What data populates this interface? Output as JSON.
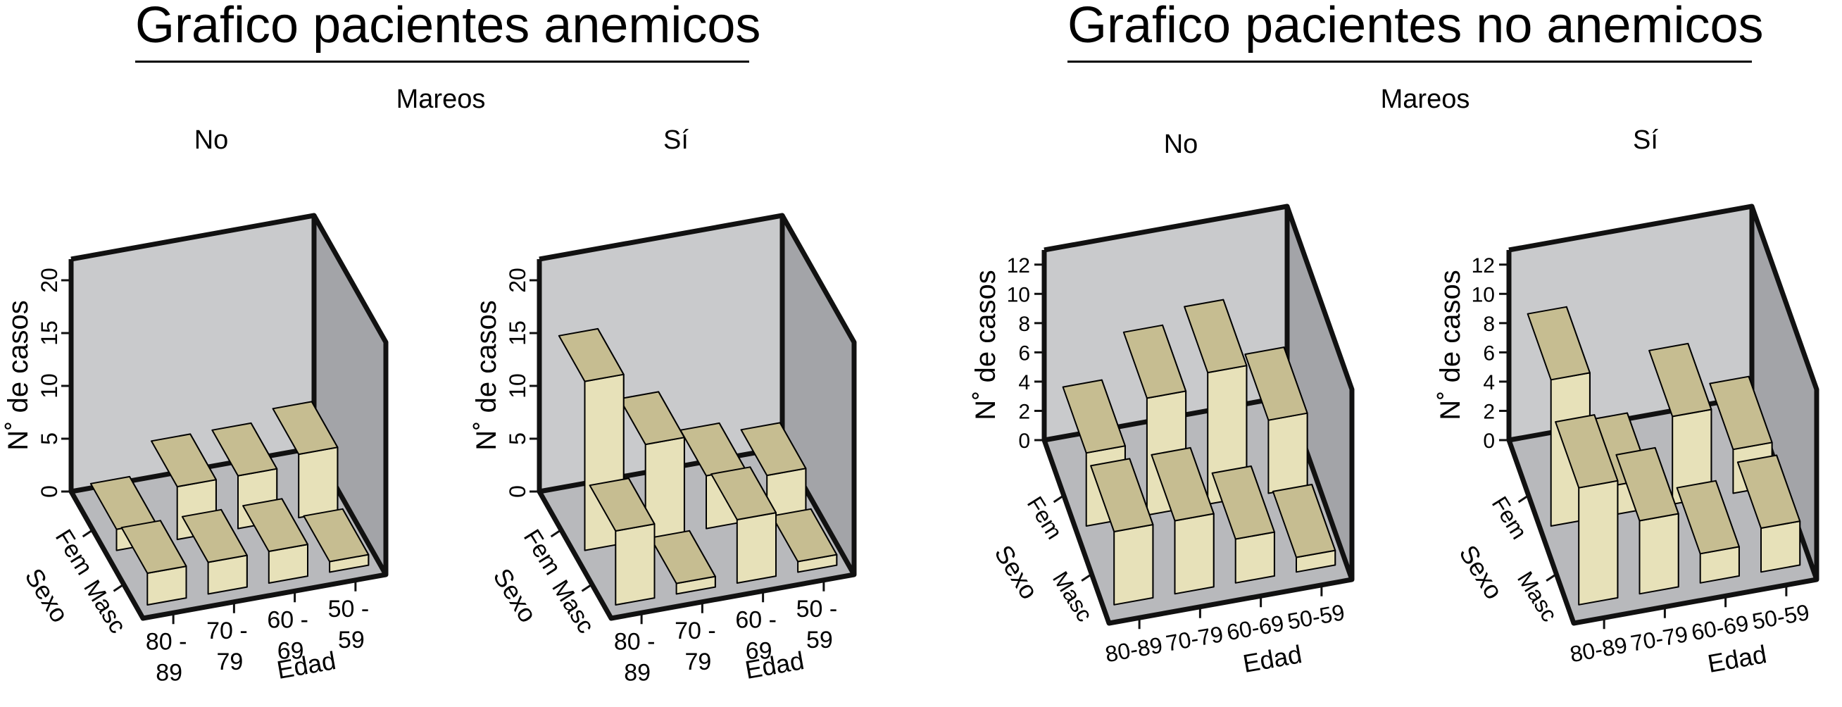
{
  "groups": [
    {
      "title": "Grafico pacientes anemicos",
      "facet_label": "Mareos",
      "ylabel": "N˚ de casos",
      "sexo_label": "Sexo",
      "edad_label": "Edad",
      "sexo_levels": [
        "Fem",
        "Masc"
      ],
      "edad_levels": [
        "80 -\n89",
        "70 -\n79",
        "60 -\n69",
        "50 -\n59"
      ]
    },
    {
      "title": "Grafico pacientes no anemicos",
      "facet_label": "Mareos",
      "ylabel": "N˚ de casos",
      "sexo_label": "Sexo",
      "edad_label": "Edad",
      "sexo_levels": [
        "Fem",
        "Masc"
      ],
      "edad_levels": [
        "80-89",
        "70-79",
        "60-69",
        "50-59"
      ]
    }
  ],
  "chart_data": [
    {
      "type": "bar3d",
      "group": "Grafico pacientes anemicos",
      "panel": "No",
      "xlabel": "Edad",
      "ylabel": "N˚ de casos",
      "zlabel": "Sexo",
      "categories": [
        "80 - 89",
        "70 - 79",
        "60 - 69",
        "50 - 59"
      ],
      "ylim": [
        0,
        22
      ],
      "yticks": [
        0,
        5,
        10,
        15,
        20
      ],
      "series": [
        {
          "name": "Fem",
          "values": [
            2,
            5,
            5,
            6
          ]
        },
        {
          "name": "Masc",
          "values": [
            3,
            3,
            3,
            1
          ]
        }
      ]
    },
    {
      "type": "bar3d",
      "group": "Grafico pacientes anemicos",
      "panel": "Sí",
      "xlabel": "Edad",
      "ylabel": "N˚ de casos",
      "zlabel": "Sexo",
      "categories": [
        "80 - 89",
        "70 - 79",
        "60 - 69",
        "50 - 59"
      ],
      "ylim": [
        0,
        22
      ],
      "yticks": [
        0,
        5,
        10,
        15,
        20
      ],
      "series": [
        {
          "name": "Fem",
          "values": [
            16,
            9,
            5,
            4
          ]
        },
        {
          "name": "Masc",
          "values": [
            7,
            1,
            6,
            1
          ]
        }
      ]
    },
    {
      "type": "bar3d",
      "group": "Grafico pacientes no anemicos",
      "panel": "No",
      "xlabel": "Edad",
      "ylabel": "N˚ de casos",
      "zlabel": "Sexo",
      "categories": [
        "80-89",
        "70-79",
        "60-69",
        "50-59"
      ],
      "ylim": [
        0,
        13
      ],
      "yticks": [
        0,
        2,
        4,
        6,
        8,
        10,
        12
      ],
      "series": [
        {
          "name": "Fem",
          "values": [
            5,
            8,
            9,
            5
          ]
        },
        {
          "name": "Masc",
          "values": [
            5,
            5,
            3,
            1
          ]
        }
      ]
    },
    {
      "type": "bar3d",
      "group": "Grafico pacientes no anemicos",
      "panel": "Sí",
      "xlabel": "Edad",
      "ylabel": "N˚ de casos",
      "zlabel": "Sexo",
      "categories": [
        "80-89",
        "70-79",
        "60-69",
        "50-59"
      ],
      "ylim": [
        0,
        13
      ],
      "yticks": [
        0,
        2,
        4,
        6,
        8,
        10,
        12
      ],
      "series": [
        {
          "name": "Fem",
          "values": [
            10,
            2,
            6,
            3
          ]
        },
        {
          "name": "Masc",
          "values": [
            8,
            5,
            2,
            3
          ]
        }
      ]
    }
  ],
  "colors": {
    "bar_front": "#e7e1b9",
    "bar_top": "#c6bd91",
    "bar_side": "#aba27a",
    "back_wall": "#c9cacc",
    "side_wall": "#a3a4a8",
    "floor": "#b8b9bc",
    "frame": "#111111"
  }
}
